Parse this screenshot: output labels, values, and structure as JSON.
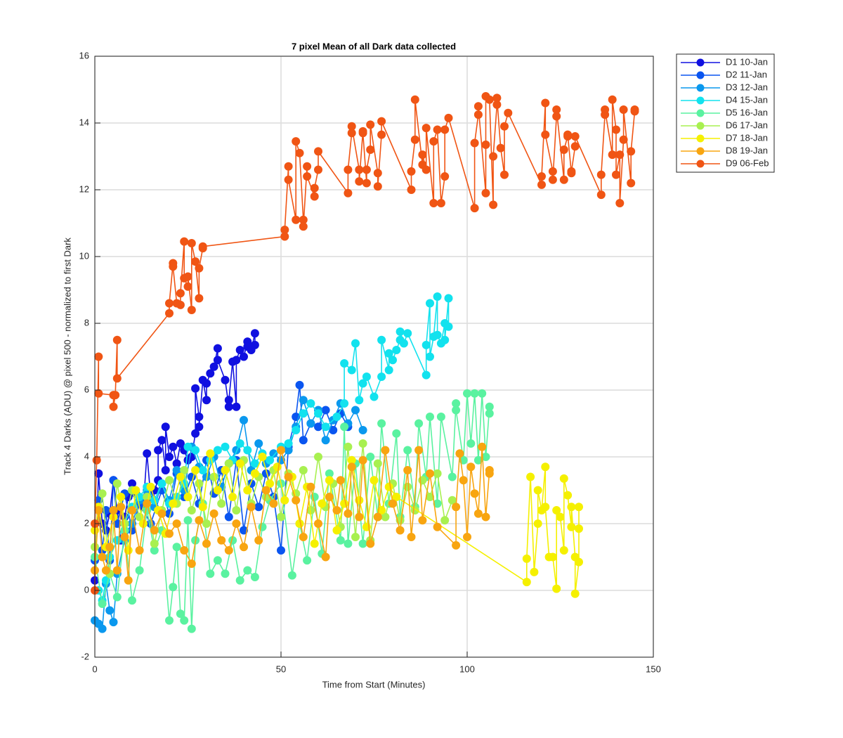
{
  "chart_data": {
    "type": "line",
    "title": "7 pixel Mean of all Dark data collected",
    "xlabel": "Time from Start (Minutes)",
    "ylabel": "Track 4 Darks (ADU) @ pixel 500 - normalized to first Dark",
    "xlim": [
      0,
      150
    ],
    "xticks": [
      0,
      50,
      100,
      150
    ],
    "ylim": [
      -2,
      16
    ],
    "yticks": [
      -2,
      0,
      2,
      4,
      6,
      8,
      10,
      12,
      14,
      16
    ],
    "grid": true,
    "legend": "northeastoutside",
    "series": [
      {
        "name": "D1 10-Jan",
        "color": "#1010e0",
        "x": [
          0,
          1,
          2,
          3,
          4,
          5,
          6,
          7,
          8,
          9,
          10,
          11,
          13,
          14,
          15,
          16,
          17,
          17,
          18,
          19,
          19,
          20,
          21,
          22,
          23,
          24,
          25,
          26,
          27,
          27,
          28,
          28,
          29,
          30,
          30,
          31,
          32,
          33,
          33,
          35,
          36,
          36,
          37,
          38,
          38,
          39,
          40,
          41,
          41,
          42,
          43,
          43
        ],
        "values": [
          0.3,
          3.5,
          2.0,
          1.8,
          2.3,
          3.3,
          2.4,
          1.5,
          2.2,
          2.8,
          3.2,
          2.9,
          2.5,
          4.1,
          2.8,
          3.0,
          3.3,
          4.2,
          4.5,
          3.6,
          4.9,
          4.0,
          4.3,
          3.8,
          4.4,
          4.2,
          3.9,
          4.0,
          4.7,
          6.05,
          5.2,
          4.9,
          6.3,
          5.7,
          6.2,
          6.5,
          6.7,
          7.25,
          6.9,
          6.3,
          5.5,
          5.7,
          6.85,
          5.5,
          6.9,
          7.2,
          7.0,
          7.45,
          7.3,
          7.2,
          7.7,
          7.35
        ]
      },
      {
        "name": "D2 11-Jan",
        "color": "#0a55f0",
        "x": [
          0,
          1,
          2,
          3,
          4,
          5,
          6,
          8,
          10,
          12,
          15,
          18,
          20,
          22,
          24,
          26,
          28,
          30,
          32,
          34,
          36,
          38,
          40,
          42,
          44,
          46,
          48,
          50,
          52,
          54,
          55,
          56,
          58,
          60,
          62,
          64,
          66,
          68
        ],
        "values": [
          0.9,
          2.7,
          1.2,
          2.4,
          0.9,
          3.3,
          2.0,
          2.9,
          1.8,
          2.6,
          2.0,
          3.0,
          2.3,
          3.5,
          2.8,
          3.4,
          2.6,
          3.9,
          2.9,
          3.6,
          2.2,
          3.9,
          1.8,
          3.2,
          2.5,
          3.5,
          2.8,
          1.2,
          4.3,
          5.2,
          6.15,
          4.5,
          5.0,
          4.9,
          5.4,
          4.8,
          5.3,
          4.9
        ]
      },
      {
        "name": "D3 12-Jan",
        "color": "#0a98ee",
        "x": [
          0,
          1,
          2,
          3,
          4,
          5,
          6,
          8,
          10,
          12,
          14,
          16,
          18,
          20,
          22,
          24,
          26,
          28,
          30,
          32,
          34,
          36,
          38,
          40,
          42,
          44,
          46,
          48,
          50,
          52,
          54,
          56,
          58,
          60,
          62,
          64,
          66,
          68,
          70,
          72
        ],
        "values": [
          -0.9,
          -1.0,
          -1.15,
          0.2,
          -0.6,
          -0.95,
          0.5,
          1.5,
          2.0,
          2.7,
          3.0,
          2.5,
          3.2,
          2.7,
          3.6,
          3.0,
          4.3,
          3.7,
          3.4,
          4.0,
          3.1,
          3.8,
          4.2,
          5.1,
          3.6,
          4.4,
          3.8,
          4.1,
          3.9,
          4.2,
          4.9,
          5.7,
          5.0,
          5.4,
          4.5,
          5.1,
          5.6,
          5.0,
          5.4,
          4.8
        ]
      },
      {
        "name": "D4 15-Jan",
        "color": "#12e2ee",
        "x": [
          1,
          2,
          3,
          4,
          6,
          8,
          10,
          12,
          14,
          16,
          18,
          20,
          22,
          24,
          25,
          27,
          29,
          31,
          33,
          35,
          37,
          39,
          41,
          43,
          45,
          47,
          50,
          52,
          54,
          56,
          58,
          60,
          62,
          65,
          67,
          67,
          69,
          70,
          71,
          72,
          73,
          75,
          77,
          77,
          79,
          79,
          80,
          81,
          82,
          82,
          83,
          84,
          89,
          89,
          90,
          90,
          91,
          92,
          92,
          93,
          94,
          94,
          95,
          95
        ],
        "values": [
          0.0,
          -0.3,
          0.3,
          1.0,
          1.5,
          2.0,
          2.5,
          2.8,
          3.1,
          2.7,
          3.2,
          2.6,
          2.8,
          3.2,
          4.3,
          4.2,
          3.6,
          3.9,
          4.2,
          4.3,
          3.9,
          4.4,
          4.2,
          3.8,
          4.1,
          3.9,
          4.3,
          4.4,
          4.8,
          5.3,
          5.6,
          5.3,
          4.9,
          5.2,
          5.6,
          6.8,
          6.6,
          7.4,
          5.7,
          6.2,
          6.4,
          5.8,
          6.4,
          7.5,
          6.6,
          7.1,
          6.9,
          7.2,
          7.5,
          7.75,
          7.4,
          7.7,
          6.45,
          7.35,
          8.6,
          7.0,
          7.6,
          8.8,
          7.65,
          7.4,
          8.0,
          7.5,
          8.75,
          7.9
        ]
      },
      {
        "name": "D5 16-Jan",
        "color": "#5af2a0",
        "x": [
          0,
          2,
          4,
          6,
          8,
          10,
          12,
          14,
          16,
          18,
          20,
          21,
          22,
          23,
          24,
          25,
          26,
          27,
          29,
          31,
          33,
          35,
          37,
          39,
          41,
          43,
          45,
          47,
          50,
          53,
          55,
          57,
          59,
          61,
          63,
          66,
          67,
          68,
          70,
          72,
          74,
          76,
          77,
          79,
          81,
          82,
          84,
          86,
          87,
          89,
          90,
          92,
          93,
          96,
          97,
          97,
          99,
          100,
          101,
          102,
          103,
          104,
          105,
          106,
          106
        ],
        "values": [
          1.0,
          -0.4,
          0.5,
          -0.2,
          1.8,
          -0.3,
          0.6,
          2.4,
          1.2,
          1.8,
          -0.9,
          0.1,
          1.3,
          -0.7,
          -0.9,
          2.1,
          -1.15,
          1.5,
          2.6,
          0.5,
          0.9,
          0.5,
          1.5,
          0.3,
          0.6,
          0.4,
          1.9,
          2.7,
          3.2,
          0.45,
          2.0,
          0.9,
          2.8,
          1.1,
          3.5,
          1.5,
          4.9,
          1.4,
          3.8,
          1.4,
          4.0,
          2.2,
          5.0,
          2.6,
          4.7,
          2.2,
          4.2,
          2.5,
          5.0,
          3.4,
          5.2,
          2.6,
          5.2,
          3.4,
          5.6,
          5.4,
          3.9,
          5.9,
          4.4,
          5.9,
          3.9,
          5.9,
          4.0,
          5.5,
          5.3
        ]
      },
      {
        "name": "D6 17-Jan",
        "color": "#a8f050",
        "x": [
          0,
          2,
          4,
          6,
          8,
          10,
          12,
          14,
          16,
          18,
          20,
          22,
          24,
          26,
          28,
          30,
          32,
          34,
          36,
          38,
          40,
          42,
          44,
          46,
          48,
          50,
          52,
          54,
          56,
          58,
          60,
          62,
          64,
          66,
          68,
          70,
          72,
          74,
          76,
          78,
          80,
          82,
          84,
          86,
          88,
          90,
          92,
          94,
          96
        ],
        "values": [
          1.3,
          2.9,
          0.5,
          3.2,
          2.0,
          3.0,
          2.2,
          2.8,
          1.4,
          2.4,
          3.3,
          2.6,
          3.6,
          2.4,
          3.2,
          2.0,
          3.4,
          2.6,
          3.8,
          2.4,
          3.9,
          2.6,
          3.4,
          2.8,
          3.6,
          2.2,
          3.5,
          2.9,
          3.6,
          2.4,
          4.0,
          2.5,
          3.2,
          1.9,
          4.3,
          1.6,
          4.4,
          1.5,
          3.8,
          2.2,
          3.2,
          2.1,
          3.1,
          2.4,
          3.3,
          2.8,
          3.5,
          2.1,
          2.7
        ]
      },
      {
        "name": "D7 18-Jan",
        "color": "#f5f000",
        "x": [
          0,
          1,
          3,
          5,
          7,
          9,
          11,
          13,
          15,
          17,
          19,
          21,
          23,
          25,
          27,
          29,
          31,
          33,
          35,
          37,
          39,
          41,
          43,
          45,
          47,
          49,
          51,
          53,
          55,
          57,
          59,
          61,
          63,
          65,
          67,
          69,
          71,
          73,
          75,
          77,
          79,
          81,
          116,
          116,
          117,
          118,
          119,
          119,
          120,
          121,
          121,
          122,
          123,
          124,
          124,
          125,
          126,
          126,
          127,
          128,
          128,
          129,
          129,
          130,
          130,
          130
        ],
        "values": [
          1.8,
          2.5,
          1.3,
          2.2,
          2.8,
          1.2,
          3.0,
          2.0,
          3.1,
          2.4,
          1.7,
          2.6,
          3.4,
          2.8,
          3.6,
          2.5,
          4.1,
          3.0,
          3.6,
          2.8,
          3.8,
          3.0,
          3.5,
          4.0,
          3.2,
          3.7,
          2.7,
          3.4,
          2.0,
          3.1,
          1.4,
          2.6,
          3.3,
          1.8,
          2.6,
          3.9,
          2.7,
          1.9,
          3.3,
          2.4,
          3.1,
          2.8,
          0.25,
          0.95,
          3.4,
          0.55,
          2.0,
          3.0,
          2.4,
          3.7,
          2.5,
          1.0,
          1.0,
          0.05,
          2.4,
          2.2,
          1.2,
          3.35,
          2.85,
          1.9,
          2.5,
          1.0,
          -0.1,
          0.85,
          2.5,
          1.85
        ]
      },
      {
        "name": "D8 19-Jan",
        "color": "#f8a510",
        "x": [
          0,
          1,
          2,
          3,
          4,
          5,
          6,
          7,
          8,
          9,
          10,
          12,
          14,
          16,
          18,
          20,
          22,
          24,
          26,
          28,
          30,
          32,
          34,
          36,
          38,
          40,
          42,
          44,
          46,
          48,
          50,
          52,
          54,
          56,
          58,
          60,
          62,
          63,
          65,
          66,
          68,
          69,
          71,
          72,
          74,
          76,
          78,
          80,
          82,
          84,
          85,
          87,
          88,
          90,
          92,
          97,
          97,
          98,
          99,
          100,
          101,
          102,
          103,
          104,
          105,
          106,
          106
        ],
        "values": [
          0.6,
          2.4,
          1.0,
          0.6,
          1.3,
          2.4,
          0.6,
          2.5,
          1.6,
          0.3,
          2.4,
          1.2,
          2.6,
          1.8,
          2.3,
          1.7,
          2.0,
          1.2,
          0.8,
          2.1,
          1.4,
          2.3,
          1.5,
          1.2,
          2.0,
          1.3,
          2.5,
          1.5,
          3.0,
          2.6,
          4.2,
          3.4,
          2.7,
          1.6,
          3.1,
          2.0,
          1.0,
          2.8,
          2.4,
          3.3,
          2.3,
          3.7,
          2.2,
          3.9,
          1.4,
          2.2,
          4.2,
          2.6,
          1.8,
          3.6,
          1.6,
          4.2,
          2.1,
          3.5,
          1.9,
          1.35,
          2.5,
          4.1,
          3.3,
          1.6,
          3.7,
          2.9,
          2.3,
          4.3,
          2.2,
          3.6,
          3.5
        ]
      },
      {
        "name": "D9 06-Feb",
        "color": "#f05514",
        "x": [
          0,
          0,
          0.5,
          1,
          1,
          5,
          5,
          5.5,
          6,
          6,
          20,
          20,
          21,
          21,
          22,
          23,
          23,
          24,
          24,
          25,
          25,
          26,
          26,
          27,
          28,
          28,
          29,
          29,
          51,
          51,
          52,
          52,
          54,
          54,
          55,
          56,
          56,
          57,
          57,
          59,
          59,
          60,
          60,
          68,
          68,
          69,
          69,
          71,
          71,
          72,
          72,
          73,
          73,
          74,
          74,
          76,
          76,
          77,
          77,
          85,
          85,
          86,
          86,
          88,
          88,
          89,
          89,
          91,
          91,
          92,
          93,
          94,
          94,
          95,
          102,
          102,
          103,
          103,
          105,
          105,
          105,
          106,
          107,
          107,
          108,
          108,
          109,
          110,
          110,
          111,
          120,
          120,
          121,
          121,
          123,
          123,
          124,
          124,
          126,
          126,
          127,
          127,
          128,
          128,
          129,
          129,
          136,
          136,
          137,
          137,
          139,
          139,
          140,
          140,
          141,
          141,
          142,
          142,
          144,
          144,
          145,
          145
        ],
        "values": [
          0,
          2,
          3.9,
          7.0,
          5.9,
          5.85,
          5.5,
          5.85,
          7.5,
          6.35,
          8.3,
          8.6,
          9.8,
          9.7,
          8.6,
          8.55,
          8.9,
          10.45,
          9.35,
          9.1,
          9.4,
          8.4,
          10.4,
          9.85,
          8.75,
          9.65,
          10.25,
          10.3,
          10.6,
          10.8,
          12.7,
          12.3,
          11.1,
          13.45,
          13.1,
          11.1,
          10.9,
          12.7,
          12.4,
          11.8,
          12.05,
          12.6,
          13.15,
          11.9,
          12.6,
          13.7,
          13.9,
          12.6,
          12.25,
          13.75,
          13.7,
          12.2,
          12.6,
          13.2,
          13.95,
          12.5,
          12.1,
          13.65,
          14.05,
          12.0,
          12.55,
          13.5,
          14.7,
          12.75,
          13.05,
          12.6,
          13.85,
          11.6,
          13.45,
          13.8,
          11.6,
          12.4,
          13.8,
          14.15,
          11.45,
          13.4,
          14.25,
          14.5,
          11.9,
          13.35,
          14.8,
          14.7,
          11.55,
          13.0,
          14.55,
          14.75,
          13.25,
          12.45,
          13.9,
          14.3,
          12.15,
          12.4,
          14.6,
          13.65,
          12.55,
          12.3,
          14.2,
          14.4,
          12.3,
          13.2,
          13.6,
          13.65,
          12.5,
          12.55,
          13.3,
          13.6,
          11.85,
          12.45,
          14.25,
          14.4,
          13.05,
          14.7,
          13.8,
          12.45,
          13.05,
          11.6,
          13.5,
          14.4,
          12.2,
          13.15,
          14.35,
          14.4
        ]
      }
    ]
  }
}
